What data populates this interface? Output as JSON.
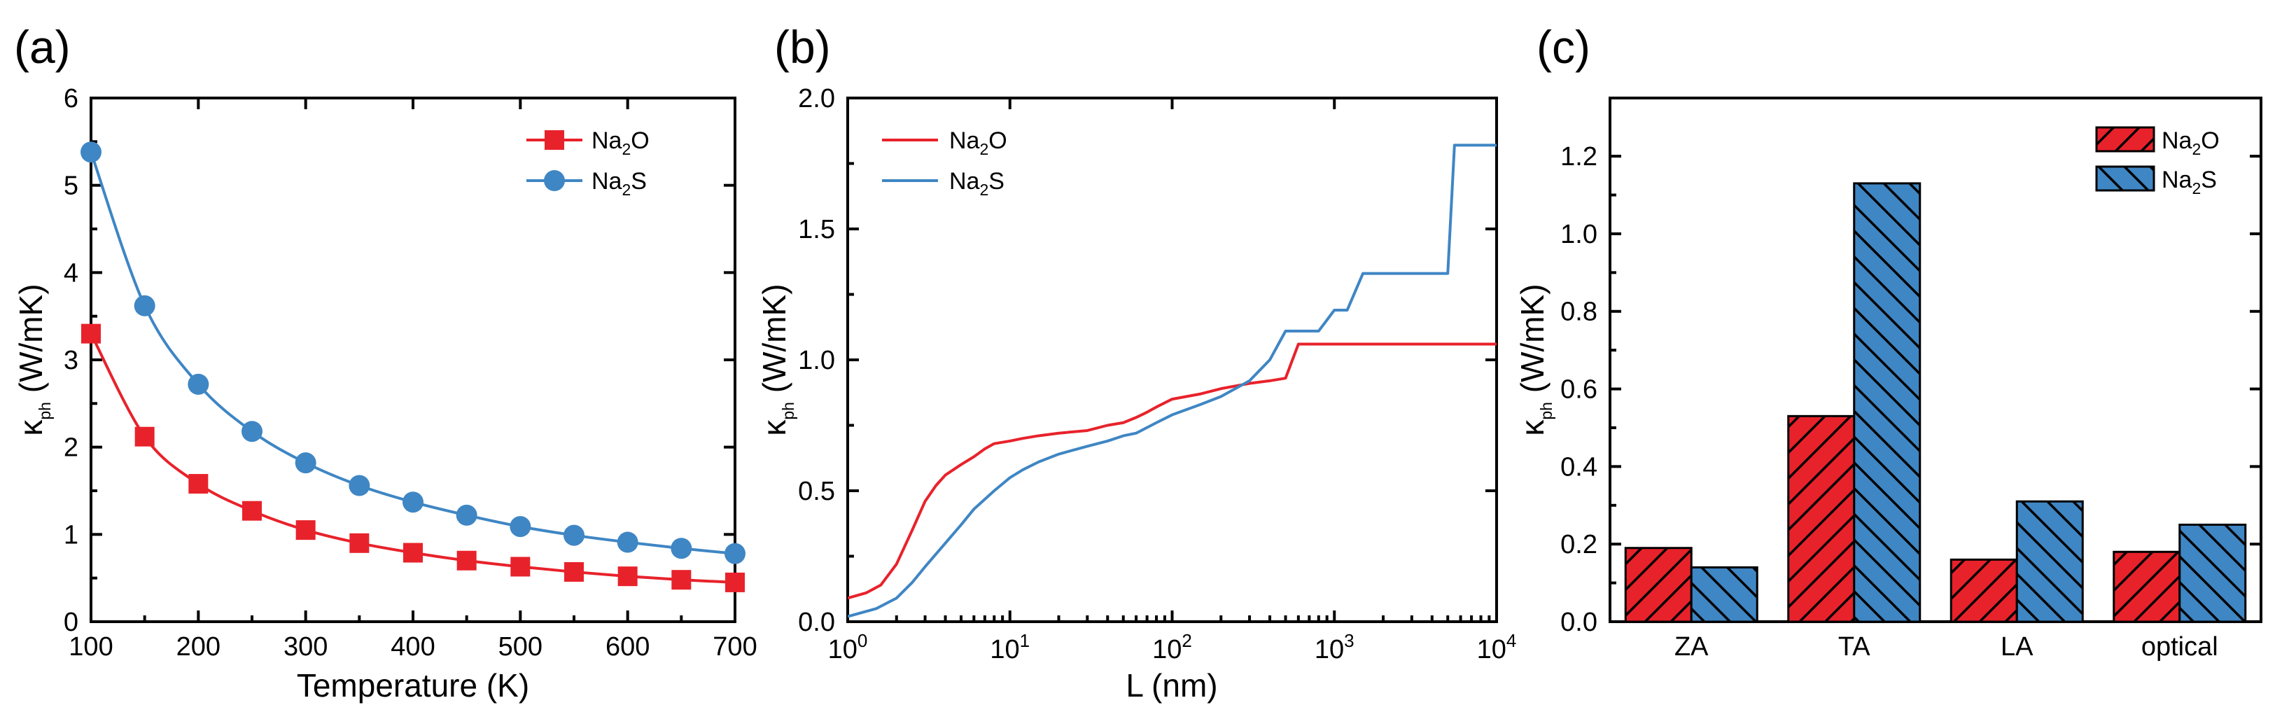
{
  "chart_data": [
    {
      "panel": "(a)",
      "type": "line",
      "xlabel": "Temperature (K)",
      "ylabel": "κ_ph (W/mK)",
      "ylabel_main": "κ",
      "ylabel_sub": "ph",
      "ylabel_unit": " (W/mK)",
      "xlim": [
        100,
        700
      ],
      "ylim": [
        0,
        6
      ],
      "xticks": [
        100,
        200,
        300,
        400,
        500,
        600,
        700
      ],
      "yticks": [
        0,
        1,
        2,
        3,
        4,
        5,
        6
      ],
      "legend_position": "top-right",
      "x": [
        100,
        150,
        200,
        250,
        300,
        350,
        400,
        450,
        500,
        550,
        600,
        650,
        700
      ],
      "series": [
        {
          "name": "Na2O",
          "name_main": "Na",
          "name_sub": "2",
          "name_tail": "O",
          "color": "#e8222b",
          "marker": "square",
          "values": [
            3.3,
            2.12,
            1.58,
            1.27,
            1.05,
            0.9,
            0.79,
            0.7,
            0.63,
            0.57,
            0.52,
            0.48,
            0.45
          ]
        },
        {
          "name": "Na2S",
          "name_main": "Na",
          "name_sub": "2",
          "name_tail": "S",
          "color": "#3f86c4",
          "marker": "circle",
          "values": [
            5.38,
            3.62,
            2.72,
            2.18,
            1.82,
            1.56,
            1.37,
            1.22,
            1.09,
            0.99,
            0.91,
            0.84,
            0.78
          ]
        }
      ]
    },
    {
      "panel": "(b)",
      "type": "line",
      "xscale": "log",
      "xlabel": "L (nm)",
      "ylabel": "κ_ph (W/mK)",
      "ylabel_main": "κ",
      "ylabel_sub": "ph",
      "ylabel_unit": " (W/mK)",
      "xlim": [
        1,
        10000
      ],
      "ylim": [
        0,
        2.0
      ],
      "xticks": [
        1,
        10,
        100,
        1000,
        10000
      ],
      "xtick_labels": [
        {
          "base": "10",
          "exp": "0"
        },
        {
          "base": "10",
          "exp": "1"
        },
        {
          "base": "10",
          "exp": "2"
        },
        {
          "base": "10",
          "exp": "3"
        },
        {
          "base": "10",
          "exp": "4"
        }
      ],
      "yticks": [
        0.0,
        0.5,
        1.0,
        1.5,
        2.0
      ],
      "ytick_labels": [
        "0.0",
        "0.5",
        "1.0",
        "1.5",
        "2.0"
      ],
      "legend_position": "top-left",
      "series": [
        {
          "name": "Na2O",
          "name_main": "Na",
          "name_sub": "2",
          "name_tail": "O",
          "color": "#e8222b",
          "x": [
            1,
            1.3,
            1.6,
            2,
            2.5,
            3,
            3.5,
            4,
            5,
            6,
            7,
            8,
            10,
            12,
            15,
            20,
            30,
            40,
            50,
            60,
            70,
            80,
            100,
            150,
            200,
            300,
            400,
            500,
            600,
            700,
            1000,
            2000,
            5000,
            10000
          ],
          "values": [
            0.09,
            0.11,
            0.14,
            0.22,
            0.35,
            0.46,
            0.52,
            0.56,
            0.6,
            0.63,
            0.66,
            0.68,
            0.69,
            0.7,
            0.71,
            0.72,
            0.73,
            0.75,
            0.76,
            0.78,
            0.8,
            0.82,
            0.85,
            0.87,
            0.89,
            0.91,
            0.92,
            0.93,
            1.06,
            1.06,
            1.06,
            1.06,
            1.06,
            1.06
          ]
        },
        {
          "name": "Na2S",
          "name_main": "Na",
          "name_sub": "2",
          "name_tail": "S",
          "color": "#3f86c4",
          "x": [
            1,
            1.5,
            2,
            2.5,
            3,
            4,
            5,
            6,
            8,
            10,
            12,
            15,
            20,
            30,
            40,
            50,
            60,
            80,
            100,
            150,
            200,
            300,
            400,
            500,
            600,
            800,
            1000,
            1200,
            1500,
            2000,
            3000,
            4000,
            5000,
            5500,
            7000,
            10000
          ],
          "values": [
            0.02,
            0.05,
            0.09,
            0.15,
            0.21,
            0.3,
            0.37,
            0.43,
            0.5,
            0.55,
            0.58,
            0.61,
            0.64,
            0.67,
            0.69,
            0.71,
            0.72,
            0.76,
            0.79,
            0.83,
            0.86,
            0.92,
            1.0,
            1.11,
            1.11,
            1.11,
            1.19,
            1.19,
            1.33,
            1.33,
            1.33,
            1.33,
            1.33,
            1.82,
            1.82,
            1.82
          ]
        }
      ]
    },
    {
      "panel": "(c)",
      "type": "bar",
      "xlabel": "",
      "ylabel": "κ_ph (W/mK)",
      "ylabel_main": "κ",
      "ylabel_sub": "ph",
      "ylabel_unit": " (W/mK)",
      "ylim": [
        0,
        1.35
      ],
      "yticks": [
        0.0,
        0.2,
        0.4,
        0.6,
        0.8,
        1.0,
        1.2
      ],
      "ytick_labels": [
        "0.0",
        "0.2",
        "0.4",
        "0.6",
        "0.8",
        "1.0",
        "1.2"
      ],
      "legend_position": "top-right",
      "categories": [
        "ZA",
        "TA",
        "LA",
        "optical"
      ],
      "series": [
        {
          "name": "Na2O",
          "name_main": "Na",
          "name_sub": "2",
          "name_tail": "O",
          "color": "#e8222b",
          "hatch": "diagonal",
          "values": [
            0.19,
            0.53,
            0.16,
            0.18
          ]
        },
        {
          "name": "Na2S",
          "name_main": "Na",
          "name_sub": "2",
          "name_tail": "S",
          "color": "#3f86c4",
          "hatch": "diagonal-reverse",
          "values": [
            0.14,
            1.13,
            0.31,
            0.25
          ]
        }
      ]
    }
  ]
}
